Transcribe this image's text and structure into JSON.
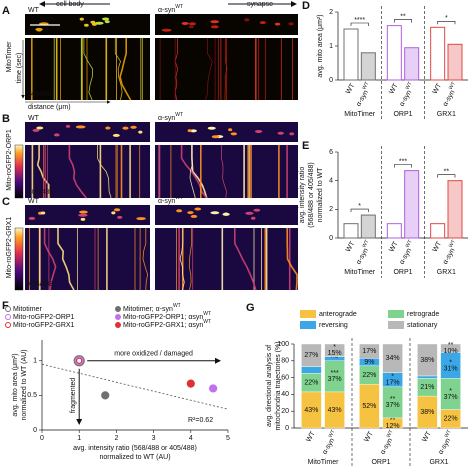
{
  "panels_ac": {
    "cell_body": "cell body",
    "synapse": "synapse",
    "wt": "WT",
    "syn": "α-syn",
    "syn_sup": "WT",
    "scale": "8μm",
    "time": "time (sec)",
    "distance": "distance (μm)",
    "rows": [
      {
        "letter": "A",
        "label": "MitoTimer",
        "ratio": "568/488"
      },
      {
        "letter": "B",
        "label": "Mito-roGFP2-ORP1",
        "ratio": "405/488"
      },
      {
        "letter": "C",
        "label": "Mito-roGFP2-GRX1",
        "ratio": "405/488"
      }
    ]
  },
  "chart_data": [
    {
      "type": "bar",
      "letter": "D",
      "y_label": [
        "avg. mito area (μm²)"
      ],
      "categories": [
        "WT",
        "α-syn",
        "WT",
        "α-syn",
        "WT",
        "α-syn"
      ],
      "category_sup": [
        null,
        "WT",
        null,
        "WT",
        null,
        "WT"
      ],
      "groups": [
        "MitoTimer",
        "ORP1",
        "GRX1"
      ],
      "colors": [
        "#707070",
        "#b060e0",
        "#e04848"
      ],
      "values": [
        1.5,
        0.8,
        1.6,
        0.95,
        1.55,
        1.05
      ],
      "significance": [
        "****",
        "**",
        "*"
      ],
      "ylim": [
        0,
        2
      ],
      "yticks": [
        0,
        1,
        2
      ]
    },
    {
      "type": "bar",
      "letter": "E",
      "y_label": [
        "avg. intensity ratio",
        "(568/488 or 405/488)",
        "normalized to WT"
      ],
      "categories": [
        "WT",
        "α-syn",
        "WT",
        "α-syn",
        "WT",
        "α-syn"
      ],
      "category_sup": [
        null,
        "WT",
        null,
        "WT",
        null,
        "WT"
      ],
      "groups": [
        "MitoTimer",
        "ORP1",
        "GRX1"
      ],
      "colors": [
        "#707070",
        "#b060e0",
        "#e04848"
      ],
      "values": [
        1.0,
        1.6,
        1.0,
        4.7,
        1.0,
        4.0
      ],
      "significance": [
        "*",
        "***",
        "**"
      ],
      "ylim": [
        0,
        6
      ],
      "yticks": [
        0,
        2,
        4,
        6
      ]
    },
    {
      "type": "scatter",
      "letter": "F",
      "x_label": [
        "avg. intensity ratio (568/488 or 405/488)",
        "normalized to WT (AU)"
      ],
      "y_label": [
        "avg. mito area (μm²)",
        "normalized to WT (AU)"
      ],
      "series": [
        {
          "name": "Mitotimer",
          "name_sup": null,
          "color": "#707070",
          "filled": false,
          "x": [
            1.0
          ],
          "values": [
            1.0
          ]
        },
        {
          "name": "Mito-roGFP2-ORP1",
          "name_sup": null,
          "color": "#c070f0",
          "filled": false,
          "x": [
            1.0
          ],
          "values": [
            1.0
          ]
        },
        {
          "name": "Mito-roGFP2-GRX1",
          "name_sup": null,
          "color": "#e03030",
          "filled": false,
          "x": [
            1.0
          ],
          "values": [
            1.0
          ]
        },
        {
          "name": "Mitotimer; α-syn",
          "name_sup": "WT",
          "color": "#707070",
          "filled": true,
          "x": [
            1.7
          ],
          "values": [
            0.5
          ]
        },
        {
          "name": "Mito-roGFP2-ORP1; αsyn",
          "name_sup": "WT",
          "color": "#c070f0",
          "filled": true,
          "x": [
            4.6
          ],
          "values": [
            0.6
          ]
        },
        {
          "name": "Mito-roGFP2-GRX1; αsyn",
          "name_sup": "WT",
          "color": "#e03030",
          "filled": true,
          "x": [
            4.0
          ],
          "values": [
            0.67
          ]
        }
      ],
      "trend": {
        "x": [
          0,
          5
        ],
        "y": [
          0.95,
          0.3
        ]
      },
      "annotations": {
        "oxidized": "more oxidized / damaged",
        "fragmented": "fragmented",
        "r2": "R²=0.62"
      },
      "xlim": [
        0,
        5
      ],
      "xticks": [
        0,
        1,
        2,
        3,
        4,
        5
      ],
      "ylim": [
        0,
        1.3
      ],
      "yticks": [
        0,
        0.5,
        1
      ]
    },
    {
      "type": "stacked_bar",
      "letter": "G",
      "y_label": [
        "avg. directional analysis of",
        "mitochondria trajectories (%)"
      ],
      "categories": [
        "WT",
        "α-syn",
        "WT",
        "α-syn",
        "WT",
        "α-syn"
      ],
      "category_sup": [
        null,
        "WT",
        null,
        "WT",
        null,
        "WT"
      ],
      "groups": [
        "MitoTimer",
        "ORP1",
        "GRX1"
      ],
      "series": [
        {
          "name": "anterograde",
          "color": "#f5c242",
          "values": [
            43,
            43,
            52,
            12,
            38,
            22
          ],
          "value_labels": [
            "43%",
            "43%",
            "52%",
            "12%",
            "38%",
            "22%"
          ],
          "significance": [
            null,
            null,
            null,
            "**",
            null,
            null
          ]
        },
        {
          "name": "retrograde",
          "color": "#7fd38f",
          "values": [
            22,
            37,
            22,
            37,
            21,
            37
          ],
          "value_labels": [
            "22%",
            "37%",
            "22%",
            "37%",
            "21%",
            "37%"
          ],
          "significance": [
            null,
            "***",
            null,
            "**",
            null,
            "*"
          ]
        },
        {
          "name": "reversing",
          "color": "#3ba7e6",
          "values": [
            8,
            5,
            9,
            17,
            3,
            31
          ],
          "value_labels": [
            "8%",
            "5%",
            "9%",
            "17%",
            "3%",
            "31%"
          ],
          "significance": [
            null,
            "ns",
            null,
            "*",
            null,
            "*"
          ]
        },
        {
          "name": "stationary",
          "color": "#b8b8b8",
          "values": [
            27,
            15,
            17,
            34,
            38,
            10
          ],
          "value_labels": [
            "27%",
            "15%",
            "17%",
            "34%",
            "38%",
            "10%"
          ],
          "significance": [
            null,
            "*",
            null,
            null,
            null,
            "**"
          ]
        }
      ],
      "ylim": [
        0,
        100
      ],
      "yticks": [
        0,
        20,
        40,
        60,
        80,
        100
      ]
    }
  ]
}
